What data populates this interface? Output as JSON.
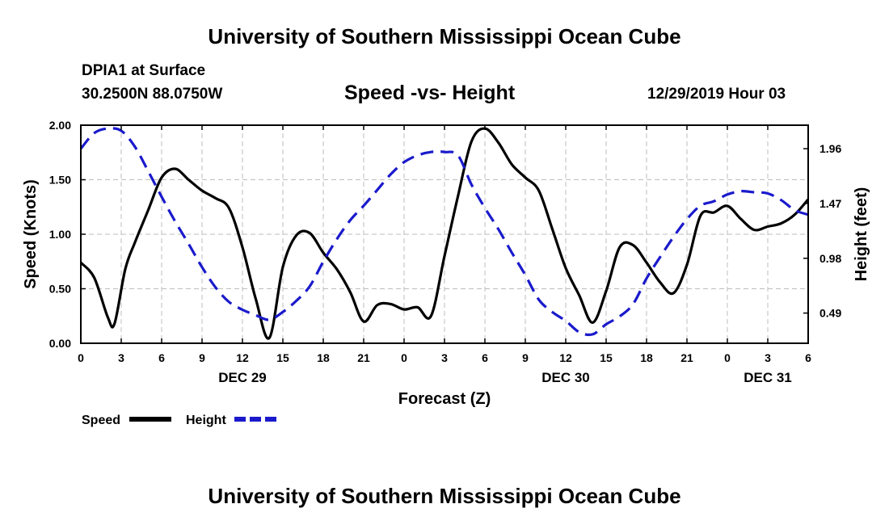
{
  "header": {
    "title": "University of Southern Mississippi Ocean Cube",
    "station": "DPIA1 at Surface",
    "coords": "30.2500N 88.0750W",
    "run_time": "12/29/2019 Hour 03"
  },
  "footer": {
    "title": "University of Southern Mississippi Ocean Cube"
  },
  "chart_data": {
    "type": "line",
    "title": "Speed -vs- Height",
    "xlabel": "Forecast (Z)",
    "ylabel": "Speed (Knots)",
    "ylabel_right": "Height (feet)",
    "x_hours_range": [
      0,
      54
    ],
    "ylim": [
      0,
      2.0
    ],
    "y2lim": [
      0.22,
      2.17
    ],
    "x_ticks": [
      {
        "h": 0,
        "label": "0"
      },
      {
        "h": 3,
        "label": "3"
      },
      {
        "h": 6,
        "label": "6"
      },
      {
        "h": 9,
        "label": "9"
      },
      {
        "h": 12,
        "label": "12"
      },
      {
        "h": 15,
        "label": "15"
      },
      {
        "h": 18,
        "label": "18"
      },
      {
        "h": 21,
        "label": "21"
      },
      {
        "h": 24,
        "label": "0"
      },
      {
        "h": 27,
        "label": "3"
      },
      {
        "h": 30,
        "label": "6"
      },
      {
        "h": 33,
        "label": "9"
      },
      {
        "h": 36,
        "label": "12"
      },
      {
        "h": 39,
        "label": "15"
      },
      {
        "h": 42,
        "label": "18"
      },
      {
        "h": 45,
        "label": "21"
      },
      {
        "h": 48,
        "label": "0"
      },
      {
        "h": 51,
        "label": "3"
      },
      {
        "h": 54,
        "label": "6"
      }
    ],
    "day_labels": [
      {
        "h": 12,
        "label": "DEC 29"
      },
      {
        "h": 36,
        "label": "DEC 30"
      },
      {
        "h": 51,
        "label": "DEC 31"
      }
    ],
    "y_ticks": [
      {
        "v": 0.0,
        "label": "0.00"
      },
      {
        "v": 0.5,
        "label": "0.50"
      },
      {
        "v": 1.0,
        "label": "1.00"
      },
      {
        "v": 1.5,
        "label": "1.50"
      },
      {
        "v": 2.0,
        "label": "2.00"
      }
    ],
    "y2_ticks": [
      {
        "v": 0.49,
        "label": "0.49"
      },
      {
        "v": 0.98,
        "label": "0.98"
      },
      {
        "v": 1.47,
        "label": "1.47"
      },
      {
        "v": 1.96,
        "label": "1.96"
      }
    ],
    "legend": [
      {
        "name": "Speed",
        "color": "#000000",
        "dash": "solid"
      },
      {
        "name": "Height",
        "color": "#1a1acc",
        "dash": "dashed"
      }
    ],
    "legend_position": "bottom-left",
    "grid": true,
    "series": [
      {
        "name": "Speed",
        "axis": "left",
        "color": "#000000",
        "points": [
          [
            0,
            0.74
          ],
          [
            1,
            0.6
          ],
          [
            2,
            0.24
          ],
          [
            2.5,
            0.18
          ],
          [
            3.3,
            0.68
          ],
          [
            4,
            0.92
          ],
          [
            5,
            1.22
          ],
          [
            6,
            1.52
          ],
          [
            7,
            1.6
          ],
          [
            8,
            1.5
          ],
          [
            9,
            1.4
          ],
          [
            10,
            1.33
          ],
          [
            11,
            1.24
          ],
          [
            12,
            0.88
          ],
          [
            13,
            0.4
          ],
          [
            14,
            0.05
          ],
          [
            15,
            0.7
          ],
          [
            16,
            0.99
          ],
          [
            17,
            1.01
          ],
          [
            18,
            0.83
          ],
          [
            19,
            0.68
          ],
          [
            20,
            0.47
          ],
          [
            21,
            0.2
          ],
          [
            22,
            0.35
          ],
          [
            23,
            0.36
          ],
          [
            24,
            0.31
          ],
          [
            25,
            0.33
          ],
          [
            26,
            0.25
          ],
          [
            27,
            0.8
          ],
          [
            28,
            1.35
          ],
          [
            29,
            1.85
          ],
          [
            30,
            1.97
          ],
          [
            31,
            1.84
          ],
          [
            32,
            1.64
          ],
          [
            33,
            1.52
          ],
          [
            34,
            1.4
          ],
          [
            35,
            1.05
          ],
          [
            36,
            0.69
          ],
          [
            37,
            0.44
          ],
          [
            38,
            0.19
          ],
          [
            39,
            0.48
          ],
          [
            40,
            0.88
          ],
          [
            41,
            0.9
          ],
          [
            42,
            0.74
          ],
          [
            43,
            0.56
          ],
          [
            44,
            0.46
          ],
          [
            45,
            0.72
          ],
          [
            46,
            1.17
          ],
          [
            47,
            1.2
          ],
          [
            48,
            1.26
          ],
          [
            49,
            1.14
          ],
          [
            50,
            1.04
          ],
          [
            51,
            1.07
          ],
          [
            52,
            1.1
          ],
          [
            53,
            1.18
          ],
          [
            54,
            1.32
          ]
        ]
      },
      {
        "name": "Height",
        "axis": "right",
        "color": "#1a1acc",
        "points": [
          [
            0,
            1.96
          ],
          [
            1,
            2.1
          ],
          [
            2,
            2.14
          ],
          [
            3,
            2.12
          ],
          [
            4,
            1.98
          ],
          [
            5,
            1.76
          ],
          [
            6,
            1.53
          ],
          [
            7,
            1.31
          ],
          [
            8,
            1.11
          ],
          [
            9,
            0.9
          ],
          [
            10,
            0.72
          ],
          [
            11,
            0.59
          ],
          [
            12,
            0.52
          ],
          [
            13,
            0.47
          ],
          [
            14,
            0.43
          ],
          [
            15,
            0.5
          ],
          [
            16,
            0.6
          ],
          [
            17,
            0.73
          ],
          [
            18,
            0.95
          ],
          [
            19,
            1.15
          ],
          [
            20,
            1.32
          ],
          [
            21,
            1.45
          ],
          [
            22,
            1.59
          ],
          [
            23,
            1.73
          ],
          [
            24,
            1.84
          ],
          [
            25,
            1.9
          ],
          [
            26,
            1.93
          ],
          [
            27,
            1.93
          ],
          [
            28,
            1.9
          ],
          [
            29,
            1.64
          ],
          [
            30,
            1.43
          ],
          [
            31,
            1.24
          ],
          [
            32,
            1.03
          ],
          [
            33,
            0.83
          ],
          [
            34,
            0.61
          ],
          [
            35,
            0.5
          ],
          [
            36,
            0.42
          ],
          [
            37,
            0.32
          ],
          [
            38,
            0.3
          ],
          [
            39,
            0.39
          ],
          [
            40,
            0.46
          ],
          [
            41,
            0.57
          ],
          [
            42,
            0.8
          ],
          [
            43,
            0.99
          ],
          [
            44,
            1.17
          ],
          [
            45,
            1.33
          ],
          [
            46,
            1.45
          ],
          [
            47,
            1.49
          ],
          [
            48,
            1.55
          ],
          [
            49,
            1.58
          ],
          [
            50,
            1.57
          ],
          [
            51,
            1.56
          ],
          [
            52,
            1.5
          ],
          [
            53,
            1.41
          ],
          [
            54,
            1.37
          ]
        ]
      }
    ]
  }
}
